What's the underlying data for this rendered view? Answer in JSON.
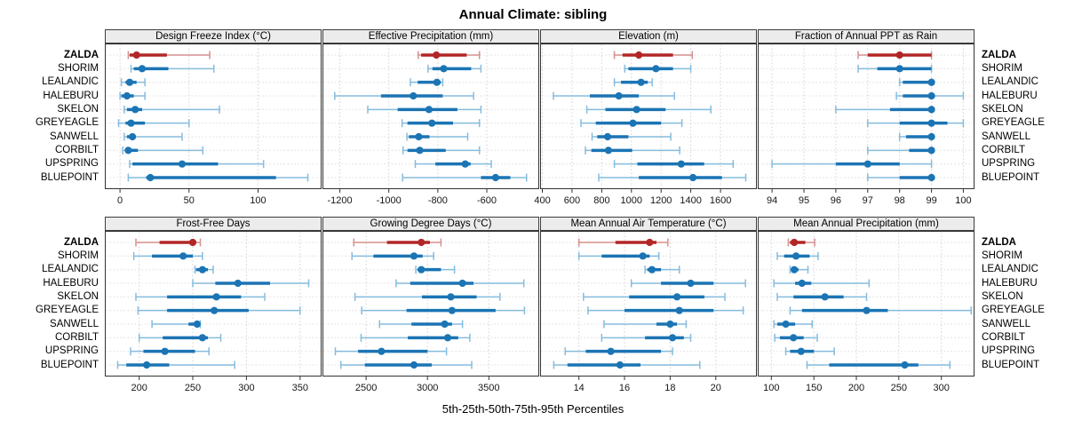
{
  "chart_data": {
    "type": "dotplot",
    "title": "Annual Climate: sibling",
    "caption": "5th-25th-50th-75th-95th Percentiles",
    "percentiles": [
      5,
      25,
      50,
      75,
      95
    ],
    "legend_position": "none",
    "grid": "dotted",
    "categories": [
      "ZALDA",
      "SHORIM",
      "LEALANDIC",
      "HALEBURU",
      "SKELON",
      "GREYEAGLE",
      "SANWELL",
      "CORBILT",
      "UPSPRING",
      "BLUEPOINT"
    ],
    "highlight_category": "ZALDA",
    "colors": {
      "highlight_dark": "#b22626",
      "highlight_light": "#d6908e",
      "normal_dark": "#1b74b4",
      "normal_light": "#85bcde",
      "grid": "#d2d2d2",
      "row_guide": "#dcdcdc",
      "strip_bg": "#ececec",
      "panel_border": "#333333"
    },
    "panels": [
      {
        "title": "Design Freeze Index (°C)",
        "xlim": [
          -11,
          146
        ],
        "ticks": [
          0,
          50,
          100
        ],
        "values": [
          [
            6,
            7,
            12,
            34,
            65
          ],
          [
            8,
            10,
            16,
            35,
            68
          ],
          [
            1,
            4,
            7,
            12,
            18
          ],
          [
            0,
            1,
            5,
            10,
            18
          ],
          [
            3,
            5,
            11,
            16,
            72
          ],
          [
            -1,
            4,
            8,
            18,
            50
          ],
          [
            3,
            5,
            9,
            10,
            45
          ],
          [
            2,
            4,
            6,
            13,
            60
          ],
          [
            7,
            9,
            45,
            71,
            104
          ],
          [
            6,
            19,
            22,
            113,
            136
          ]
        ]
      },
      {
        "title": "Effective Precipitation (mm)",
        "xlim": [
          -1271,
          -386
        ],
        "ticks": [
          -1200,
          -1000,
          -800,
          -600
        ],
        "values": [
          [
            -880,
            -868,
            -806,
            -682,
            -630
          ],
          [
            -840,
            -822,
            -776,
            -664,
            -624
          ],
          [
            -912,
            -882,
            -804,
            -788,
            -780
          ],
          [
            -1221,
            -1032,
            -900,
            -780,
            -654
          ],
          [
            -1086,
            -964,
            -836,
            -720,
            -624
          ],
          [
            -946,
            -924,
            -824,
            -738,
            -630
          ],
          [
            -926,
            -918,
            -878,
            -834,
            -678
          ],
          [
            -942,
            -924,
            -874,
            -768,
            -630
          ],
          [
            -892,
            -810,
            -688,
            -666,
            -582
          ],
          [
            -944,
            -624,
            -564,
            -504,
            -438
          ]
        ]
      },
      {
        "title": "Elevation (m)",
        "xlim": [
          385,
          1845
        ],
        "ticks": [
          400,
          600,
          800,
          1000,
          1200,
          1400,
          1600
        ],
        "values": [
          [
            885,
            940,
            1050,
            1280,
            1410
          ],
          [
            955,
            980,
            1165,
            1280,
            1400
          ],
          [
            885,
            930,
            1065,
            1110,
            1140
          ],
          [
            475,
            720,
            915,
            1050,
            1290
          ],
          [
            700,
            825,
            1035,
            1230,
            1535
          ],
          [
            660,
            760,
            1010,
            1200,
            1340
          ],
          [
            735,
            770,
            840,
            980,
            1265
          ],
          [
            690,
            730,
            845,
            1005,
            1325
          ],
          [
            885,
            1040,
            1335,
            1490,
            1685
          ],
          [
            780,
            1050,
            1415,
            1610,
            1770
          ]
        ]
      },
      {
        "title": "Fraction of Annual PPT as Rain",
        "xlim": [
          93.55,
          100.35
        ],
        "ticks": [
          94,
          95,
          96,
          97,
          98,
          99,
          100
        ],
        "values": [
          [
            96.7,
            97.0,
            98.0,
            99.0,
            99.0
          ],
          [
            96.7,
            97.3,
            98.0,
            99.0,
            99.0
          ],
          [
            98.0,
            98.1,
            99.0,
            99.0,
            99.0
          ],
          [
            97.9,
            98.1,
            99.0,
            99.0,
            100.0
          ],
          [
            96.0,
            97.7,
            99.0,
            99.0,
            99.0
          ],
          [
            97.0,
            98.0,
            99.0,
            99.5,
            100.0
          ],
          [
            98.0,
            98.2,
            99.0,
            99.0,
            99.0
          ],
          [
            97.0,
            98.3,
            99.0,
            99.0,
            99.0
          ],
          [
            94.0,
            96.0,
            97.0,
            98.0,
            99.0
          ],
          [
            97.0,
            98.0,
            99.0,
            99.0,
            99.0
          ]
        ]
      },
      {
        "title": "Frost-Free Days",
        "xlim": [
          168,
          370
        ],
        "ticks": [
          200,
          250,
          300,
          350
        ],
        "values": [
          [
            197,
            219,
            250,
            253,
            257
          ],
          [
            195,
            212,
            241,
            250,
            259
          ],
          [
            252,
            253,
            259,
            264,
            269
          ],
          [
            250,
            271,
            292,
            322,
            358
          ],
          [
            197,
            226,
            272,
            295,
            317
          ],
          [
            199,
            226,
            270,
            302,
            350
          ],
          [
            212,
            246,
            254,
            255,
            257
          ],
          [
            200,
            222,
            259,
            264,
            276
          ],
          [
            192,
            204,
            224,
            252,
            265
          ],
          [
            180,
            188,
            207,
            228,
            289
          ]
        ]
      },
      {
        "title": "Growing Degree Days (°C)",
        "xlim": [
          2145,
          3910
        ],
        "ticks": [
          2500,
          3000,
          3500
        ],
        "values": [
          [
            2400,
            2670,
            2950,
            3020,
            3110
          ],
          [
            2385,
            2560,
            2890,
            2960,
            3050
          ],
          [
            2905,
            2920,
            2950,
            3110,
            3220
          ],
          [
            2745,
            2860,
            3285,
            3375,
            3785
          ],
          [
            2410,
            2955,
            3190,
            3400,
            3590
          ],
          [
            2465,
            2830,
            3200,
            3555,
            3790
          ],
          [
            2610,
            2870,
            3140,
            3200,
            3285
          ],
          [
            2460,
            2840,
            3165,
            3250,
            3345
          ],
          [
            2250,
            2435,
            2625,
            3000,
            3155
          ],
          [
            2295,
            2490,
            2890,
            3035,
            3360
          ]
        ]
      },
      {
        "title": "Mean Annual Air Temperature (°C)",
        "xlim": [
          12.3,
          21.8
        ],
        "ticks": [
          14,
          16,
          18,
          20
        ],
        "values": [
          [
            14.0,
            15.6,
            17.1,
            17.4,
            17.9
          ],
          [
            14.0,
            15.0,
            16.8,
            17.1,
            17.5
          ],
          [
            16.9,
            17.0,
            17.2,
            17.6,
            18.4
          ],
          [
            16.3,
            17.6,
            18.9,
            19.9,
            21.3
          ],
          [
            14.2,
            16.2,
            18.3,
            19.5,
            20.4
          ],
          [
            14.4,
            16.0,
            18.4,
            19.9,
            21.2
          ],
          [
            15.1,
            17.4,
            18.0,
            18.3,
            18.7
          ],
          [
            15.0,
            16.9,
            18.1,
            18.6,
            18.9
          ],
          [
            13.4,
            14.3,
            15.4,
            17.6,
            18.1
          ],
          [
            12.9,
            13.5,
            15.8,
            16.7,
            19.3
          ]
        ]
      },
      {
        "title": "Mean Annual Precipitation (mm)",
        "xlim": [
          84,
          339
        ],
        "ticks": [
          100,
          150,
          200,
          250,
          300
        ],
        "values": [
          [
            120,
            122,
            127,
            140,
            151
          ],
          [
            107,
            115,
            129,
            145,
            155
          ],
          [
            122,
            123,
            127,
            132,
            143
          ],
          [
            103,
            128,
            136,
            147,
            215
          ],
          [
            107,
            126,
            163,
            185,
            212
          ],
          [
            122,
            136,
            212,
            237,
            335
          ],
          [
            103,
            107,
            117,
            128,
            148
          ],
          [
            104,
            110,
            126,
            138,
            154
          ],
          [
            117,
            122,
            135,
            150,
            174
          ],
          [
            142,
            168,
            257,
            273,
            310
          ]
        ]
      }
    ]
  }
}
